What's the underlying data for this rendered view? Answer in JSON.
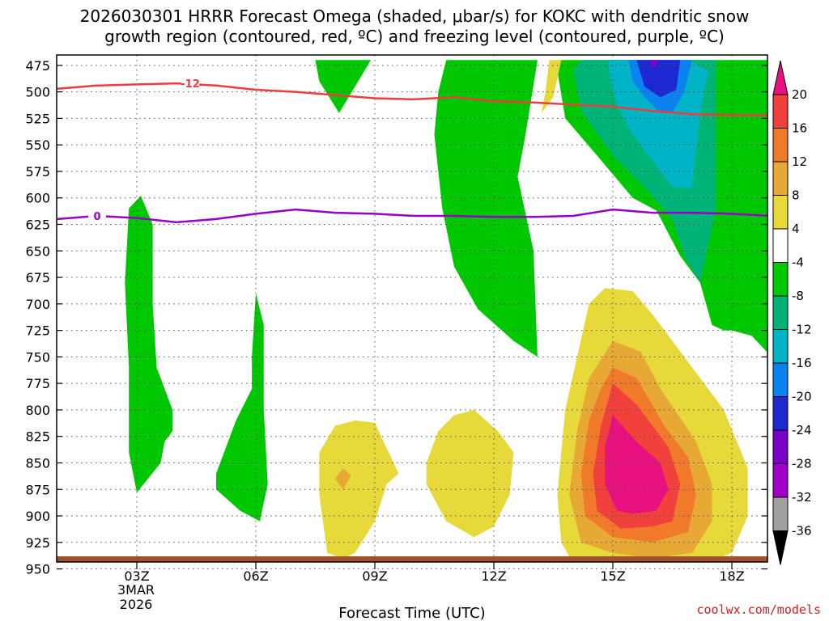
{
  "chart_data": {
    "type": "cross-section",
    "title_line1": "2026030301 HRRR Forecast Omega (shaded, μbar/s) for KOKC with dendritic snow",
    "title_line2": "growth region (contoured, red, ºC) and freezing level (contoured, purple, ºC)",
    "xlabel": "Forecast Time (UTC)",
    "credit": "coolwx.com/models",
    "x_range_hours": [
      1,
      19
    ],
    "y_range_mb": [
      470,
      965
    ],
    "y_ticks": [
      475,
      500,
      525,
      550,
      575,
      600,
      625,
      650,
      675,
      700,
      725,
      750,
      775,
      800,
      825,
      850,
      875,
      900,
      925,
      950
    ],
    "x_ticks": [
      {
        "hour": 3,
        "label": "03Z"
      },
      {
        "hour": 6,
        "label": "06Z"
      },
      {
        "hour": 9,
        "label": "09Z"
      },
      {
        "hour": 12,
        "label": "12Z"
      },
      {
        "hour": 15,
        "label": "15Z"
      },
      {
        "hour": 18,
        "label": "18Z"
      }
    ],
    "date_label_line1": "3MAR",
    "date_label_line2": "2026",
    "colorbar": {
      "labels": [
        "20",
        "16",
        "12",
        "8",
        "4",
        "-4",
        "-8",
        "-12",
        "-16",
        "-20",
        "-24",
        "-28",
        "-32",
        "-36"
      ],
      "colors": [
        "#e8117f",
        "#f2403c",
        "#f07a2a",
        "#e8a834",
        "#e8d93a",
        "#ffffff",
        "#00c800",
        "#00b478",
        "#00b4c8",
        "#0a82f0",
        "#1e28d2",
        "#7800c8",
        "#a000c8",
        "#a0a0a0"
      ]
    },
    "isotherms": [
      {
        "name": "dendritic -12C",
        "label": "-12",
        "color": "#f03c3c",
        "points": [
          [
            1,
            497
          ],
          [
            2,
            494
          ],
          [
            3,
            493
          ],
          [
            4,
            492
          ],
          [
            5,
            494
          ],
          [
            6,
            498
          ],
          [
            7,
            500
          ],
          [
            8,
            503
          ],
          [
            9,
            506
          ],
          [
            10,
            507
          ],
          [
            11,
            505
          ],
          [
            12,
            509
          ],
          [
            13,
            510
          ],
          [
            14,
            512
          ],
          [
            15,
            514
          ],
          [
            16,
            518
          ],
          [
            17,
            521
          ],
          [
            18,
            522
          ],
          [
            19,
            522
          ]
        ]
      },
      {
        "name": "freezing level 0C",
        "label": "0",
        "color": "#9600c8",
        "points": [
          [
            1,
            620
          ],
          [
            2,
            617
          ],
          [
            3,
            619
          ],
          [
            4,
            623
          ],
          [
            5,
            620
          ],
          [
            6,
            615
          ],
          [
            7,
            611
          ],
          [
            8,
            614
          ],
          [
            9,
            615
          ],
          [
            10,
            617
          ],
          [
            11,
            617
          ],
          [
            12,
            618
          ],
          [
            13,
            618
          ],
          [
            14,
            617
          ],
          [
            15,
            611
          ],
          [
            16,
            614
          ],
          [
            17,
            614
          ],
          [
            18,
            615
          ],
          [
            19,
            617
          ]
        ]
      }
    ],
    "omega_regions": [
      {
        "value": -8,
        "color": "#00c800",
        "points": [
          [
            7.5,
            470
          ],
          [
            8.9,
            470
          ],
          [
            8.5,
            495
          ],
          [
            8.1,
            520
          ],
          [
            7.6,
            490
          ]
        ]
      },
      {
        "value": -8,
        "color": "#00c800",
        "points": [
          [
            10.8,
            470
          ],
          [
            13.1,
            470
          ],
          [
            12.8,
            540
          ],
          [
            12.6,
            580
          ],
          [
            13.0,
            650
          ],
          [
            13.1,
            750
          ],
          [
            12.5,
            735
          ],
          [
            11.6,
            705
          ],
          [
            11.0,
            665
          ],
          [
            10.7,
            610
          ],
          [
            10.5,
            540
          ],
          [
            10.6,
            500
          ]
        ]
      },
      {
        "value": -8,
        "color": "#00c800",
        "points": [
          [
            2.8,
            610
          ],
          [
            3.1,
            598
          ],
          [
            3.4,
            625
          ],
          [
            3.4,
            700
          ],
          [
            3.5,
            760
          ],
          [
            3.9,
            800
          ],
          [
            3.9,
            820
          ],
          [
            3.7,
            830
          ],
          [
            3.6,
            850
          ],
          [
            3.0,
            878
          ],
          [
            2.8,
            840
          ],
          [
            2.8,
            760
          ],
          [
            2.7,
            680
          ]
        ]
      },
      {
        "value": -8,
        "color": "#00c800",
        "points": [
          [
            5.9,
            750
          ],
          [
            6.0,
            690
          ],
          [
            6.2,
            720
          ],
          [
            6.2,
            800
          ],
          [
            6.3,
            870
          ],
          [
            6.1,
            905
          ],
          [
            5.6,
            895
          ],
          [
            5.0,
            875
          ],
          [
            5.0,
            860
          ],
          [
            5.5,
            810
          ],
          [
            5.9,
            780
          ]
        ]
      },
      {
        "value": -8,
        "color": "#00c800",
        "points": [
          [
            13.6,
            470
          ],
          [
            19,
            470
          ],
          [
            19,
            750
          ],
          [
            18.5,
            730
          ],
          [
            18.0,
            725
          ],
          [
            17.8,
            725
          ],
          [
            17.5,
            720
          ],
          [
            17.2,
            680
          ],
          [
            16.7,
            655
          ],
          [
            16.1,
            612
          ],
          [
            15.5,
            600
          ],
          [
            14.6,
            560
          ],
          [
            13.8,
            525
          ],
          [
            13.6,
            480
          ]
        ]
      },
      {
        "value": -12,
        "color": "#00b478",
        "points": [
          [
            14.2,
            470
          ],
          [
            16.6,
            470
          ],
          [
            17.6,
            470
          ],
          [
            17.6,
            610
          ],
          [
            17.2,
            680
          ],
          [
            16.8,
            655
          ],
          [
            16.5,
            620
          ],
          [
            15.8,
            590
          ],
          [
            15.0,
            560
          ],
          [
            14.2,
            518
          ],
          [
            14.0,
            480
          ]
        ]
      },
      {
        "value": -16,
        "color": "#00b4c8",
        "points": [
          [
            14.9,
            470
          ],
          [
            16.9,
            470
          ],
          [
            17.4,
            480
          ],
          [
            17.2,
            520
          ],
          [
            17.0,
            590
          ],
          [
            16.5,
            590
          ],
          [
            16.0,
            565
          ],
          [
            15.5,
            540
          ],
          [
            15.1,
            512
          ],
          [
            14.9,
            480
          ]
        ]
      },
      {
        "value": -20,
        "color": "#0a82f0",
        "points": [
          [
            15.4,
            470
          ],
          [
            17.0,
            470
          ],
          [
            16.8,
            500
          ],
          [
            16.5,
            520
          ],
          [
            16.2,
            520
          ],
          [
            15.8,
            505
          ],
          [
            15.5,
            490
          ]
        ]
      },
      {
        "value": -24,
        "color": "#1e28d2",
        "points": [
          [
            15.6,
            470
          ],
          [
            16.7,
            470
          ],
          [
            16.6,
            498
          ],
          [
            16.2,
            505
          ],
          [
            15.8,
            495
          ]
        ]
      },
      {
        "value": -28,
        "color": "#7800c8",
        "points": [
          [
            15.9,
            470
          ],
          [
            16.2,
            470
          ],
          [
            16.0,
            478
          ]
        ]
      },
      {
        "value": 4,
        "color": "#e8d93a",
        "points": [
          [
            13.4,
            470
          ],
          [
            13.7,
            470
          ],
          [
            13.5,
            505
          ],
          [
            13.2,
            520
          ],
          [
            13.3,
            500
          ]
        ]
      },
      {
        "value": 4,
        "color": "#e8d93a",
        "points": [
          [
            8.5,
            810
          ],
          [
            9.0,
            812
          ],
          [
            9.6,
            860
          ],
          [
            9.3,
            870
          ],
          [
            9.0,
            905
          ],
          [
            8.5,
            935
          ],
          [
            8.2,
            940
          ],
          [
            7.8,
            935
          ],
          [
            7.6,
            880
          ],
          [
            7.6,
            840
          ],
          [
            8.0,
            815
          ]
        ]
      },
      {
        "value": 4,
        "color": "#e8d93a",
        "points": [
          [
            11.0,
            805
          ],
          [
            11.5,
            800
          ],
          [
            12.1,
            820
          ],
          [
            12.5,
            840
          ],
          [
            12.4,
            880
          ],
          [
            12.0,
            910
          ],
          [
            11.5,
            920
          ],
          [
            10.8,
            905
          ],
          [
            10.3,
            870
          ],
          [
            10.3,
            850
          ],
          [
            10.6,
            820
          ]
        ]
      },
      {
        "value": 4,
        "color": "#e8d93a",
        "points": [
          [
            14.8,
            685
          ],
          [
            15.5,
            688
          ],
          [
            16.0,
            710
          ],
          [
            17.0,
            760
          ],
          [
            17.8,
            800
          ],
          [
            18.4,
            855
          ],
          [
            18.4,
            900
          ],
          [
            18.0,
            935
          ],
          [
            17.0,
            950
          ],
          [
            16.0,
            955
          ],
          [
            15.0,
            955
          ],
          [
            14.0,
            945
          ],
          [
            13.7,
            925
          ],
          [
            13.6,
            880
          ],
          [
            13.8,
            800
          ],
          [
            14.1,
            750
          ],
          [
            14.4,
            700
          ]
        ]
      },
      {
        "value": 8,
        "color": "#e8a834",
        "points": [
          [
            15.0,
            735
          ],
          [
            15.7,
            745
          ],
          [
            16.2,
            780
          ],
          [
            17.1,
            830
          ],
          [
            17.5,
            870
          ],
          [
            17.5,
            905
          ],
          [
            17.0,
            935
          ],
          [
            16.0,
            940
          ],
          [
            15.0,
            935
          ],
          [
            14.2,
            925
          ],
          [
            13.9,
            880
          ],
          [
            14.1,
            820
          ],
          [
            14.4,
            770
          ]
        ]
      },
      {
        "value": 12,
        "color": "#f07a2a",
        "points": [
          [
            15.0,
            760
          ],
          [
            15.6,
            770
          ],
          [
            16.3,
            815
          ],
          [
            16.9,
            845
          ],
          [
            17.1,
            880
          ],
          [
            16.9,
            915
          ],
          [
            16.0,
            925
          ],
          [
            15.0,
            920
          ],
          [
            14.3,
            900
          ],
          [
            14.2,
            860
          ],
          [
            14.4,
            810
          ],
          [
            14.7,
            780
          ]
        ]
      },
      {
        "value": 16,
        "color": "#f2403c",
        "points": [
          [
            15.0,
            775
          ],
          [
            15.6,
            795
          ],
          [
            16.4,
            835
          ],
          [
            16.7,
            870
          ],
          [
            16.5,
            905
          ],
          [
            16.0,
            910
          ],
          [
            15.2,
            912
          ],
          [
            14.6,
            895
          ],
          [
            14.5,
            860
          ],
          [
            14.7,
            815
          ]
        ]
      },
      {
        "value": 20,
        "color": "#e8117f",
        "points": [
          [
            15.0,
            805
          ],
          [
            15.6,
            830
          ],
          [
            16.2,
            850
          ],
          [
            16.4,
            875
          ],
          [
            16.1,
            895
          ],
          [
            15.5,
            898
          ],
          [
            15.1,
            895
          ],
          [
            14.8,
            870
          ],
          [
            14.8,
            835
          ]
        ]
      },
      {
        "value": 8,
        "color": "#e8a834",
        "points": [
          [
            8.2,
            855
          ],
          [
            8.4,
            862
          ],
          [
            8.2,
            875
          ],
          [
            8.0,
            865
          ]
        ]
      }
    ]
  }
}
